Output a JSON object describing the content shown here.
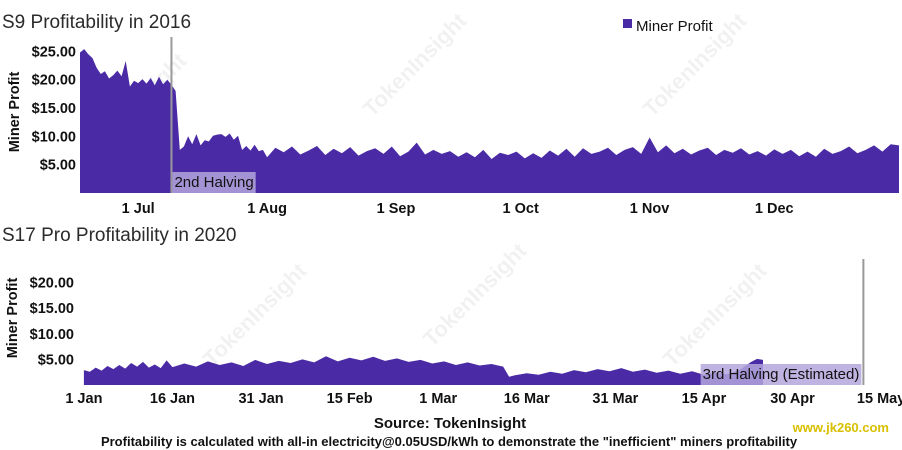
{
  "chart_data": [
    {
      "type": "area",
      "title": "S9 Profitability in 2016",
      "ylabel": "Miner Profit",
      "ylim": [
        0,
        27
      ],
      "y_ticks": [
        "$5.00",
        "$10.00",
        "$15.00",
        "$20.00",
        "$25.00"
      ],
      "y_tick_values": [
        5,
        10,
        15,
        20,
        25
      ],
      "x_range": [
        "2016-06-17",
        "2016-12-31"
      ],
      "x_ticks": [
        {
          "label": "1 Jul",
          "date": "2016-07-01"
        },
        {
          "label": "1 Aug",
          "date": "2016-08-01"
        },
        {
          "label": "1 Sep",
          "date": "2016-09-01"
        },
        {
          "label": "1 Oct",
          "date": "2016-10-01"
        },
        {
          "label": "1 Nov",
          "date": "2016-11-01"
        },
        {
          "label": "1 Dec",
          "date": "2016-12-01"
        }
      ],
      "series": [
        {
          "name": "Miner Profit",
          "color": "#4b2aa6",
          "points": [
            [
              "2016-06-17",
              24.8
            ],
            [
              "2016-06-18",
              25.4
            ],
            [
              "2016-06-19",
              24.5
            ],
            [
              "2016-06-20",
              23.8
            ],
            [
              "2016-06-21",
              22.1
            ],
            [
              "2016-06-22",
              21.0
            ],
            [
              "2016-06-23",
              21.5
            ],
            [
              "2016-06-24",
              20.2
            ],
            [
              "2016-06-25",
              20.8
            ],
            [
              "2016-06-26",
              21.6
            ],
            [
              "2016-06-27",
              20.6
            ],
            [
              "2016-06-28",
              23.3
            ],
            [
              "2016-06-29",
              18.8
            ],
            [
              "2016-06-30",
              19.8
            ],
            [
              "2016-07-01",
              19.4
            ],
            [
              "2016-07-02",
              20.1
            ],
            [
              "2016-07-03",
              19.3
            ],
            [
              "2016-07-04",
              20.3
            ],
            [
              "2016-07-05",
              19.0
            ],
            [
              "2016-07-06",
              20.5
            ],
            [
              "2016-07-07",
              19.2
            ],
            [
              "2016-07-08",
              20.0
            ],
            [
              "2016-07-09",
              19.1
            ],
            [
              "2016-07-10",
              18.0
            ],
            [
              "2016-07-11",
              7.6
            ],
            [
              "2016-07-12",
              8.2
            ],
            [
              "2016-07-13",
              10.0
            ],
            [
              "2016-07-14",
              8.6
            ],
            [
              "2016-07-15",
              10.4
            ],
            [
              "2016-07-16",
              8.4
            ],
            [
              "2016-07-17",
              9.3
            ],
            [
              "2016-07-18",
              9.1
            ],
            [
              "2016-07-19",
              10.1
            ],
            [
              "2016-07-20",
              10.3
            ],
            [
              "2016-07-21",
              10.4
            ],
            [
              "2016-07-22",
              9.9
            ],
            [
              "2016-07-23",
              10.5
            ],
            [
              "2016-07-24",
              9.4
            ],
            [
              "2016-07-25",
              10.1
            ],
            [
              "2016-07-26",
              7.6
            ],
            [
              "2016-07-27",
              8.3
            ],
            [
              "2016-07-28",
              7.5
            ],
            [
              "2016-07-29",
              8.5
            ],
            [
              "2016-07-30",
              7.4
            ],
            [
              "2016-07-31",
              7.6
            ],
            [
              "2016-08-01",
              6.3
            ],
            [
              "2016-08-03",
              8.0
            ],
            [
              "2016-08-05",
              7.2
            ],
            [
              "2016-08-07",
              8.2
            ],
            [
              "2016-08-09",
              6.8
            ],
            [
              "2016-08-11",
              7.5
            ],
            [
              "2016-08-13",
              8.3
            ],
            [
              "2016-08-15",
              6.7
            ],
            [
              "2016-08-17",
              7.8
            ],
            [
              "2016-08-19",
              7.0
            ],
            [
              "2016-08-21",
              8.1
            ],
            [
              "2016-08-23",
              6.6
            ],
            [
              "2016-08-25",
              7.4
            ],
            [
              "2016-08-27",
              7.9
            ],
            [
              "2016-08-29",
              6.9
            ],
            [
              "2016-08-31",
              8.2
            ],
            [
              "2016-09-02",
              6.5
            ],
            [
              "2016-09-04",
              7.3
            ],
            [
              "2016-09-06",
              8.9
            ],
            [
              "2016-09-08",
              6.8
            ],
            [
              "2016-09-10",
              7.6
            ],
            [
              "2016-09-12",
              6.9
            ],
            [
              "2016-09-14",
              7.4
            ],
            [
              "2016-09-16",
              6.4
            ],
            [
              "2016-09-18",
              7.2
            ],
            [
              "2016-09-20",
              6.3
            ],
            [
              "2016-09-22",
              7.6
            ],
            [
              "2016-09-24",
              6.0
            ],
            [
              "2016-09-26",
              7.1
            ],
            [
              "2016-09-28",
              6.7
            ],
            [
              "2016-09-30",
              7.3
            ],
            [
              "2016-10-02",
              6.1
            ],
            [
              "2016-10-04",
              7.0
            ],
            [
              "2016-10-06",
              6.2
            ],
            [
              "2016-10-08",
              7.5
            ],
            [
              "2016-10-10",
              6.6
            ],
            [
              "2016-10-12",
              7.8
            ],
            [
              "2016-10-14",
              6.4
            ],
            [
              "2016-10-16",
              7.9
            ],
            [
              "2016-10-18",
              6.9
            ],
            [
              "2016-10-20",
              7.3
            ],
            [
              "2016-10-22",
              8.0
            ],
            [
              "2016-10-24",
              6.7
            ],
            [
              "2016-10-26",
              7.6
            ],
            [
              "2016-10-28",
              8.1
            ],
            [
              "2016-10-30",
              6.9
            ],
            [
              "2016-11-01",
              9.8
            ],
            [
              "2016-11-03",
              7.2
            ],
            [
              "2016-11-05",
              8.4
            ],
            [
              "2016-11-07",
              7.0
            ],
            [
              "2016-11-09",
              7.8
            ],
            [
              "2016-11-11",
              6.8
            ],
            [
              "2016-11-13",
              7.5
            ],
            [
              "2016-11-15",
              8.0
            ],
            [
              "2016-11-17",
              6.7
            ],
            [
              "2016-11-19",
              7.6
            ],
            [
              "2016-11-21",
              7.1
            ],
            [
              "2016-11-23",
              7.9
            ],
            [
              "2016-11-25",
              6.8
            ],
            [
              "2016-11-27",
              7.4
            ],
            [
              "2016-11-29",
              6.6
            ],
            [
              "2016-12-01",
              7.7
            ],
            [
              "2016-12-03",
              6.9
            ],
            [
              "2016-12-05",
              7.6
            ],
            [
              "2016-12-07",
              6.5
            ],
            [
              "2016-12-09",
              7.3
            ],
            [
              "2016-12-11",
              6.4
            ],
            [
              "2016-12-13",
              7.8
            ],
            [
              "2016-12-15",
              6.9
            ],
            [
              "2016-12-17",
              7.4
            ],
            [
              "2016-12-19",
              8.2
            ],
            [
              "2016-12-21",
              7.0
            ],
            [
              "2016-12-23",
              7.6
            ],
            [
              "2016-12-25",
              8.4
            ],
            [
              "2016-12-27",
              7.3
            ],
            [
              "2016-12-29",
              8.6
            ],
            [
              "2016-12-31",
              8.4
            ]
          ]
        }
      ],
      "annotation": {
        "label": "2nd Halving",
        "date": "2016-07-09"
      },
      "legend": {
        "position": "top-right",
        "label": "Miner Profit"
      }
    },
    {
      "type": "area",
      "title": "S17 Pro Profitability in 2020",
      "ylabel": "Miner Profit",
      "ylim": [
        0,
        24
      ],
      "y_ticks": [
        "$5.00",
        "$10.00",
        "$15.00",
        "$20.00"
      ],
      "y_tick_values": [
        5,
        10,
        15,
        20
      ],
      "x_range": [
        "2019-12-31",
        "2020-05-16"
      ],
      "x_ticks": [
        {
          "label": "1 Jan",
          "date": "2020-01-01"
        },
        {
          "label": "16 Jan",
          "date": "2020-01-16"
        },
        {
          "label": "31 Jan",
          "date": "2020-01-31"
        },
        {
          "label": "15 Feb",
          "date": "2020-02-15"
        },
        {
          "label": "1 Mar",
          "date": "2020-03-01"
        },
        {
          "label": "16 Mar",
          "date": "2020-03-16"
        },
        {
          "label": "31 Mar",
          "date": "2020-03-31"
        },
        {
          "label": "15 Apr",
          "date": "2020-04-15"
        },
        {
          "label": "30 Apr",
          "date": "2020-04-30"
        },
        {
          "label": "15 May",
          "date": "2020-05-15"
        }
      ],
      "series": [
        {
          "name": "Miner Profit",
          "color": "#4b2aa6",
          "points": [
            [
              "2020-01-01",
              2.9
            ],
            [
              "2020-01-02",
              2.6
            ],
            [
              "2020-01-03",
              3.4
            ],
            [
              "2020-01-04",
              2.8
            ],
            [
              "2020-01-05",
              3.7
            ],
            [
              "2020-01-06",
              3.1
            ],
            [
              "2020-01-07",
              3.9
            ],
            [
              "2020-01-08",
              3.2
            ],
            [
              "2020-01-09",
              4.3
            ],
            [
              "2020-01-10",
              3.6
            ],
            [
              "2020-01-11",
              4.5
            ],
            [
              "2020-01-12",
              3.4
            ],
            [
              "2020-01-13",
              4.0
            ],
            [
              "2020-01-14",
              3.3
            ],
            [
              "2020-01-15",
              4.8
            ],
            [
              "2020-01-16",
              3.5
            ],
            [
              "2020-01-18",
              4.2
            ],
            [
              "2020-01-20",
              3.6
            ],
            [
              "2020-01-22",
              4.6
            ],
            [
              "2020-01-24",
              3.9
            ],
            [
              "2020-01-26",
              4.4
            ],
            [
              "2020-01-28",
              3.7
            ],
            [
              "2020-01-30",
              4.9
            ],
            [
              "2020-02-01",
              4.1
            ],
            [
              "2020-02-03",
              4.7
            ],
            [
              "2020-02-05",
              4.3
            ],
            [
              "2020-02-07",
              5.0
            ],
            [
              "2020-02-09",
              4.4
            ],
            [
              "2020-02-11",
              5.6
            ],
            [
              "2020-02-13",
              4.6
            ],
            [
              "2020-02-15",
              5.3
            ],
            [
              "2020-02-17",
              4.8
            ],
            [
              "2020-02-19",
              5.5
            ],
            [
              "2020-02-21",
              4.7
            ],
            [
              "2020-02-23",
              5.2
            ],
            [
              "2020-02-25",
              4.5
            ],
            [
              "2020-02-27",
              4.9
            ],
            [
              "2020-02-29",
              4.2
            ],
            [
              "2020-03-02",
              4.6
            ],
            [
              "2020-03-04",
              3.9
            ],
            [
              "2020-03-06",
              4.4
            ],
            [
              "2020-03-08",
              3.8
            ],
            [
              "2020-03-10",
              4.1
            ],
            [
              "2020-03-12",
              3.6
            ],
            [
              "2020-03-13",
              1.6
            ],
            [
              "2020-03-14",
              1.9
            ],
            [
              "2020-03-16",
              2.3
            ],
            [
              "2020-03-18",
              2.0
            ],
            [
              "2020-03-20",
              2.6
            ],
            [
              "2020-03-22",
              2.2
            ],
            [
              "2020-03-24",
              2.9
            ],
            [
              "2020-03-26",
              2.5
            ],
            [
              "2020-03-28",
              3.1
            ],
            [
              "2020-03-30",
              2.7
            ],
            [
              "2020-04-01",
              3.3
            ],
            [
              "2020-04-03",
              2.6
            ],
            [
              "2020-04-05",
              3.0
            ],
            [
              "2020-04-07",
              2.4
            ],
            [
              "2020-04-09",
              2.8
            ],
            [
              "2020-04-11",
              2.2
            ],
            [
              "2020-04-13",
              2.7
            ],
            [
              "2020-04-15",
              2.0
            ],
            [
              "2020-04-17",
              2.4
            ],
            [
              "2020-04-19",
              2.1
            ],
            [
              "2020-04-21",
              2.9
            ],
            [
              "2020-04-23",
              4.5
            ],
            [
              "2020-04-24",
              5.1
            ],
            [
              "2020-04-25",
              4.9
            ]
          ]
        }
      ],
      "annotation": {
        "label": "3rd Halving (Estimated)",
        "date": "2020-05-12"
      }
    }
  ],
  "footer": {
    "source": "Source: TokenInsight",
    "note": "Profitability is calculated with all-in electricity@0.05USD/kWh to demonstrate the \"inefficient\" miners profitability",
    "watermark_url": "www.jk260.com"
  },
  "watermark": "TokenInsight",
  "colors": {
    "series": "#4b2aa6",
    "annotation_box": "#b3a6dc",
    "halving_line": "#9a9a9a",
    "url": "#d8c000"
  }
}
